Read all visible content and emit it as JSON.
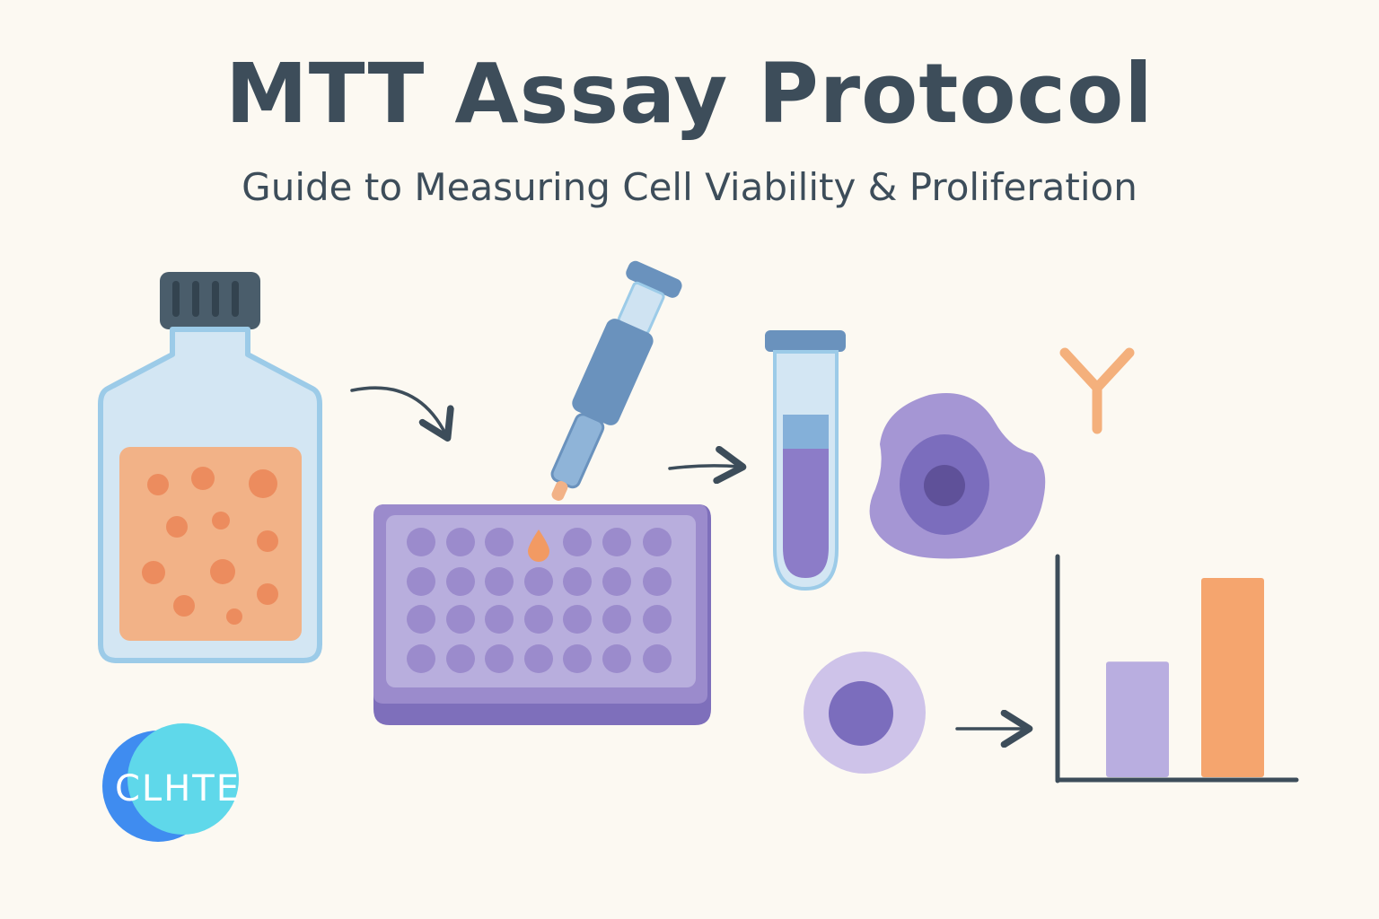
{
  "title": "MTT Assay Protocol",
  "subtitle": "Guide to Measuring Cell Viability & Proliferation",
  "logo": {
    "text": "CLHTE"
  },
  "icons": [
    "culture-flask-icon",
    "well-plate-icon",
    "pipette-icon",
    "test-tube-icon",
    "cell-icon",
    "antibody-icon",
    "chart-icon"
  ],
  "colors": {
    "background": "#fcf9f2",
    "text": "#3d4d5a",
    "flask_glass": "#cfe3f2",
    "flask_outline": "#9ccbe8",
    "medium_orange": "#f2b287",
    "dots_orange": "#ec8c5e",
    "plate_purple": "#9b8bcc",
    "plate_light": "#b8aedd",
    "cell_purple": "#9e8fd1",
    "nucleus_purple": "#7b6dbd",
    "bar_lavender": "#b9aee0",
    "bar_orange": "#f5a56e",
    "antibody_orange": "#f4b07c",
    "logo_blue": "#3f8cf0",
    "logo_cyan": "#5fd8ea"
  },
  "chart_data": {
    "type": "bar",
    "categories": [
      "",
      ""
    ],
    "values": [
      0.58,
      1.0
    ],
    "ylim": [
      0,
      1.0
    ],
    "grid": false
  }
}
